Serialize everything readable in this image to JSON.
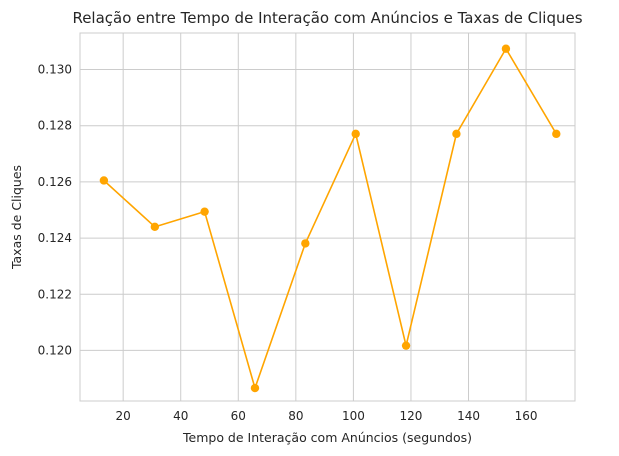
{
  "chart_data": {
    "type": "line",
    "title": "Relação entre Tempo de Interação com Anúncios e Taxas de Cliques",
    "xlabel": "Tempo de Interação com Anúncios (segundos)",
    "ylabel": "Taxas de Cliques",
    "xlim": [
      5,
      177
    ],
    "ylim": [
      0.1182,
      0.1313
    ],
    "xticks": [
      20,
      40,
      60,
      80,
      100,
      120,
      140,
      160
    ],
    "xtick_labels": [
      "20",
      "40",
      "60",
      "80",
      "100",
      "120",
      "140",
      "160"
    ],
    "yticks": [
      0.12,
      0.122,
      0.124,
      0.126,
      0.128,
      0.13
    ],
    "ytick_labels": [
      "0.120",
      "0.122",
      "0.124",
      "0.126",
      "0.128",
      "0.130"
    ],
    "grid": true,
    "color": "#FFA500",
    "series": [
      {
        "x": [
          13.3,
          31.0,
          48.3,
          65.8,
          83.3,
          100.8,
          118.3,
          135.8,
          153.0,
          170.5
        ],
        "values": [
          0.12605,
          0.1244,
          0.12494,
          0.11866,
          0.12381,
          0.12771,
          0.12017,
          0.12771,
          0.13074,
          0.12771
        ]
      }
    ]
  }
}
